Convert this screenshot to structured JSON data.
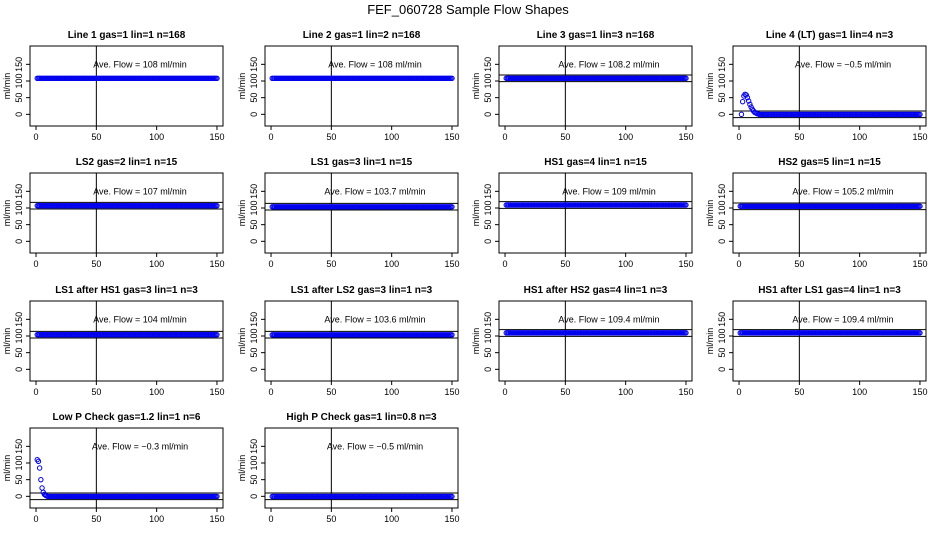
{
  "figure": {
    "title": "FEF_060728  Sample Flow Shapes"
  },
  "chart_data": [
    {
      "type": "scatter",
      "title": "Line 1 gas=1 lin=1 n=168",
      "annotation": "Ave. Flow = 108  ml/min",
      "ylabel": "ml/min",
      "xlim": [
        -5,
        155
      ],
      "ylim": [
        -35,
        205
      ],
      "xticks": [
        0,
        50,
        100,
        150
      ],
      "yticks": [
        0,
        50,
        100,
        150
      ],
      "hlines": [],
      "vline": 50,
      "series": [
        {
          "shape": "flat",
          "level": 108
        }
      ]
    },
    {
      "type": "scatter",
      "title": "Line 2 gas=1 lin=2 n=168",
      "annotation": "Ave. Flow = 108  ml/min",
      "ylabel": "ml/min",
      "xlim": [
        -5,
        155
      ],
      "ylim": [
        -35,
        205
      ],
      "xticks": [
        0,
        50,
        100,
        150
      ],
      "yticks": [
        0,
        50,
        100,
        150
      ],
      "hlines": [],
      "vline": 50,
      "series": [
        {
          "shape": "flat",
          "level": 108
        }
      ]
    },
    {
      "type": "scatter",
      "title": "Line 3 gas=1 lin=3 n=168",
      "annotation": "Ave. Flow = 108.2  ml/min",
      "ylabel": "ml/min",
      "xlim": [
        -5,
        155
      ],
      "ylim": [
        -35,
        205
      ],
      "xticks": [
        0,
        50,
        100,
        150
      ],
      "yticks": [
        0,
        50,
        100,
        150
      ],
      "hlines": [
        98,
        118
      ],
      "vline": 50,
      "series": [
        {
          "shape": "flat",
          "level": 108.2
        }
      ]
    },
    {
      "type": "scatter",
      "title": "Line 4 (LT) gas=1 lin=4 n=3",
      "annotation": "Ave. Flow = −0.5  ml/min",
      "ylabel": "ml/min",
      "xlim": [
        -5,
        155
      ],
      "ylim": [
        -35,
        205
      ],
      "xticks": [
        0,
        50,
        100,
        150
      ],
      "yticks": [
        0,
        50,
        100,
        150
      ],
      "hlines": [
        -10,
        10
      ],
      "vline": 50,
      "series": [
        {
          "shape": "decay",
          "level": -0.5,
          "points": [
            [
              2,
              0
            ],
            [
              3,
              38
            ],
            [
              4,
              55
            ],
            [
              5,
              60
            ],
            [
              6,
              58
            ],
            [
              7,
              50
            ],
            [
              8,
              40
            ],
            [
              9,
              30
            ],
            [
              10,
              22
            ],
            [
              11,
              15
            ],
            [
              12,
              10
            ],
            [
              13,
              6
            ],
            [
              14,
              4
            ],
            [
              15,
              2
            ],
            [
              16,
              1
            ]
          ]
        }
      ]
    },
    {
      "type": "scatter",
      "title": "LS2 gas=2 lin=1 n=15",
      "annotation": "Ave. Flow = 107  ml/min",
      "ylabel": "ml/min",
      "xlim": [
        -5,
        155
      ],
      "ylim": [
        -35,
        205
      ],
      "xticks": [
        0,
        50,
        100,
        150
      ],
      "yticks": [
        0,
        50,
        100,
        150
      ],
      "hlines": [
        97,
        117
      ],
      "vline": 50,
      "series": [
        {
          "shape": "flat",
          "level": 107
        }
      ]
    },
    {
      "type": "scatter",
      "title": "LS1 gas=3 lin=1 n=15",
      "annotation": "Ave. Flow = 103.7  ml/min",
      "ylabel": "ml/min",
      "xlim": [
        -5,
        155
      ],
      "ylim": [
        -35,
        205
      ],
      "xticks": [
        0,
        50,
        100,
        150
      ],
      "yticks": [
        0,
        50,
        100,
        150
      ],
      "hlines": [
        94,
        114
      ],
      "vline": 50,
      "series": [
        {
          "shape": "flat",
          "level": 103.7
        }
      ]
    },
    {
      "type": "scatter",
      "title": "HS1 gas=4 lin=1 n=15",
      "annotation": "Ave. Flow = 109  ml/min",
      "ylabel": "ml/min",
      "xlim": [
        -5,
        155
      ],
      "ylim": [
        -35,
        205
      ],
      "xticks": [
        0,
        50,
        100,
        150
      ],
      "yticks": [
        0,
        50,
        100,
        150
      ],
      "hlines": [
        99,
        119
      ],
      "vline": 50,
      "series": [
        {
          "shape": "flat",
          "level": 109
        }
      ]
    },
    {
      "type": "scatter",
      "title": "HS2 gas=5 lin=1 n=15",
      "annotation": "Ave. Flow = 105.2  ml/min",
      "ylabel": "ml/min",
      "xlim": [
        -5,
        155
      ],
      "ylim": [
        -35,
        205
      ],
      "xticks": [
        0,
        50,
        100,
        150
      ],
      "yticks": [
        0,
        50,
        100,
        150
      ],
      "hlines": [
        95,
        115
      ],
      "vline": 50,
      "series": [
        {
          "shape": "flat",
          "level": 105.2
        }
      ]
    },
    {
      "type": "scatter",
      "title": "LS1 after HS1 gas=3 lin=1 n=3",
      "annotation": "Ave. Flow = 104  ml/min",
      "ylabel": "ml/min",
      "xlim": [
        -5,
        155
      ],
      "ylim": [
        -35,
        205
      ],
      "xticks": [
        0,
        50,
        100,
        150
      ],
      "yticks": [
        0,
        50,
        100,
        150
      ],
      "hlines": [
        94,
        114
      ],
      "vline": 50,
      "series": [
        {
          "shape": "flat",
          "level": 104
        }
      ]
    },
    {
      "type": "scatter",
      "title": "LS1 after LS2 gas=3 lin=1 n=3",
      "annotation": "Ave. Flow = 103.6  ml/min",
      "ylabel": "ml/min",
      "xlim": [
        -5,
        155
      ],
      "ylim": [
        -35,
        205
      ],
      "xticks": [
        0,
        50,
        100,
        150
      ],
      "yticks": [
        0,
        50,
        100,
        150
      ],
      "hlines": [
        94,
        114
      ],
      "vline": 50,
      "series": [
        {
          "shape": "flat",
          "level": 103.6
        }
      ]
    },
    {
      "type": "scatter",
      "title": "HS1 after HS2 gas=4 lin=1 n=3",
      "annotation": "Ave. Flow = 109.4  ml/min",
      "ylabel": "ml/min",
      "xlim": [
        -5,
        155
      ],
      "ylim": [
        -35,
        205
      ],
      "xticks": [
        0,
        50,
        100,
        150
      ],
      "yticks": [
        0,
        50,
        100,
        150
      ],
      "hlines": [
        99,
        119
      ],
      "vline": 50,
      "series": [
        {
          "shape": "flat",
          "level": 109.4
        }
      ]
    },
    {
      "type": "scatter",
      "title": "HS1 after LS1 gas=4 lin=1 n=3",
      "annotation": "Ave. Flow = 109.4  ml/min",
      "ylabel": "ml/min",
      "xlim": [
        -5,
        155
      ],
      "ylim": [
        -35,
        205
      ],
      "xticks": [
        0,
        50,
        100,
        150
      ],
      "yticks": [
        0,
        50,
        100,
        150
      ],
      "hlines": [
        99,
        119
      ],
      "vline": 50,
      "series": [
        {
          "shape": "flat",
          "level": 109.4
        }
      ]
    },
    {
      "type": "scatter",
      "title": "Low P Check gas=1.2 lin=1 n=6",
      "annotation": "Ave. Flow = −0.3  ml/min",
      "ylabel": "ml/min",
      "xlim": [
        -5,
        155
      ],
      "ylim": [
        -35,
        205
      ],
      "xticks": [
        0,
        50,
        100,
        150
      ],
      "yticks": [
        0,
        50,
        100,
        150
      ],
      "hlines": [
        -10,
        10
      ],
      "vline": 50,
      "series": [
        {
          "shape": "decay",
          "level": -0.3,
          "points": [
            [
              1,
              110
            ],
            [
              2,
              105
            ],
            [
              3,
              85
            ],
            [
              4,
              50
            ],
            [
              5,
              25
            ],
            [
              6,
              12
            ],
            [
              7,
              6
            ],
            [
              8,
              3
            ],
            [
              9,
              1
            ]
          ]
        }
      ]
    },
    {
      "type": "scatter",
      "title": "High P Check gas=1 lin=0.8 n=3",
      "annotation": "Ave. Flow = −0.5  ml/min",
      "ylabel": "ml/min",
      "xlim": [
        -5,
        155
      ],
      "ylim": [
        -35,
        205
      ],
      "xticks": [
        0,
        50,
        100,
        150
      ],
      "yticks": [
        0,
        50,
        100,
        150
      ],
      "hlines": [
        -10,
        10
      ],
      "vline": 50,
      "series": [
        {
          "shape": "flat",
          "level": -0.5
        }
      ]
    }
  ],
  "colors": {
    "points": "#0000ee",
    "axes": "#000000"
  }
}
